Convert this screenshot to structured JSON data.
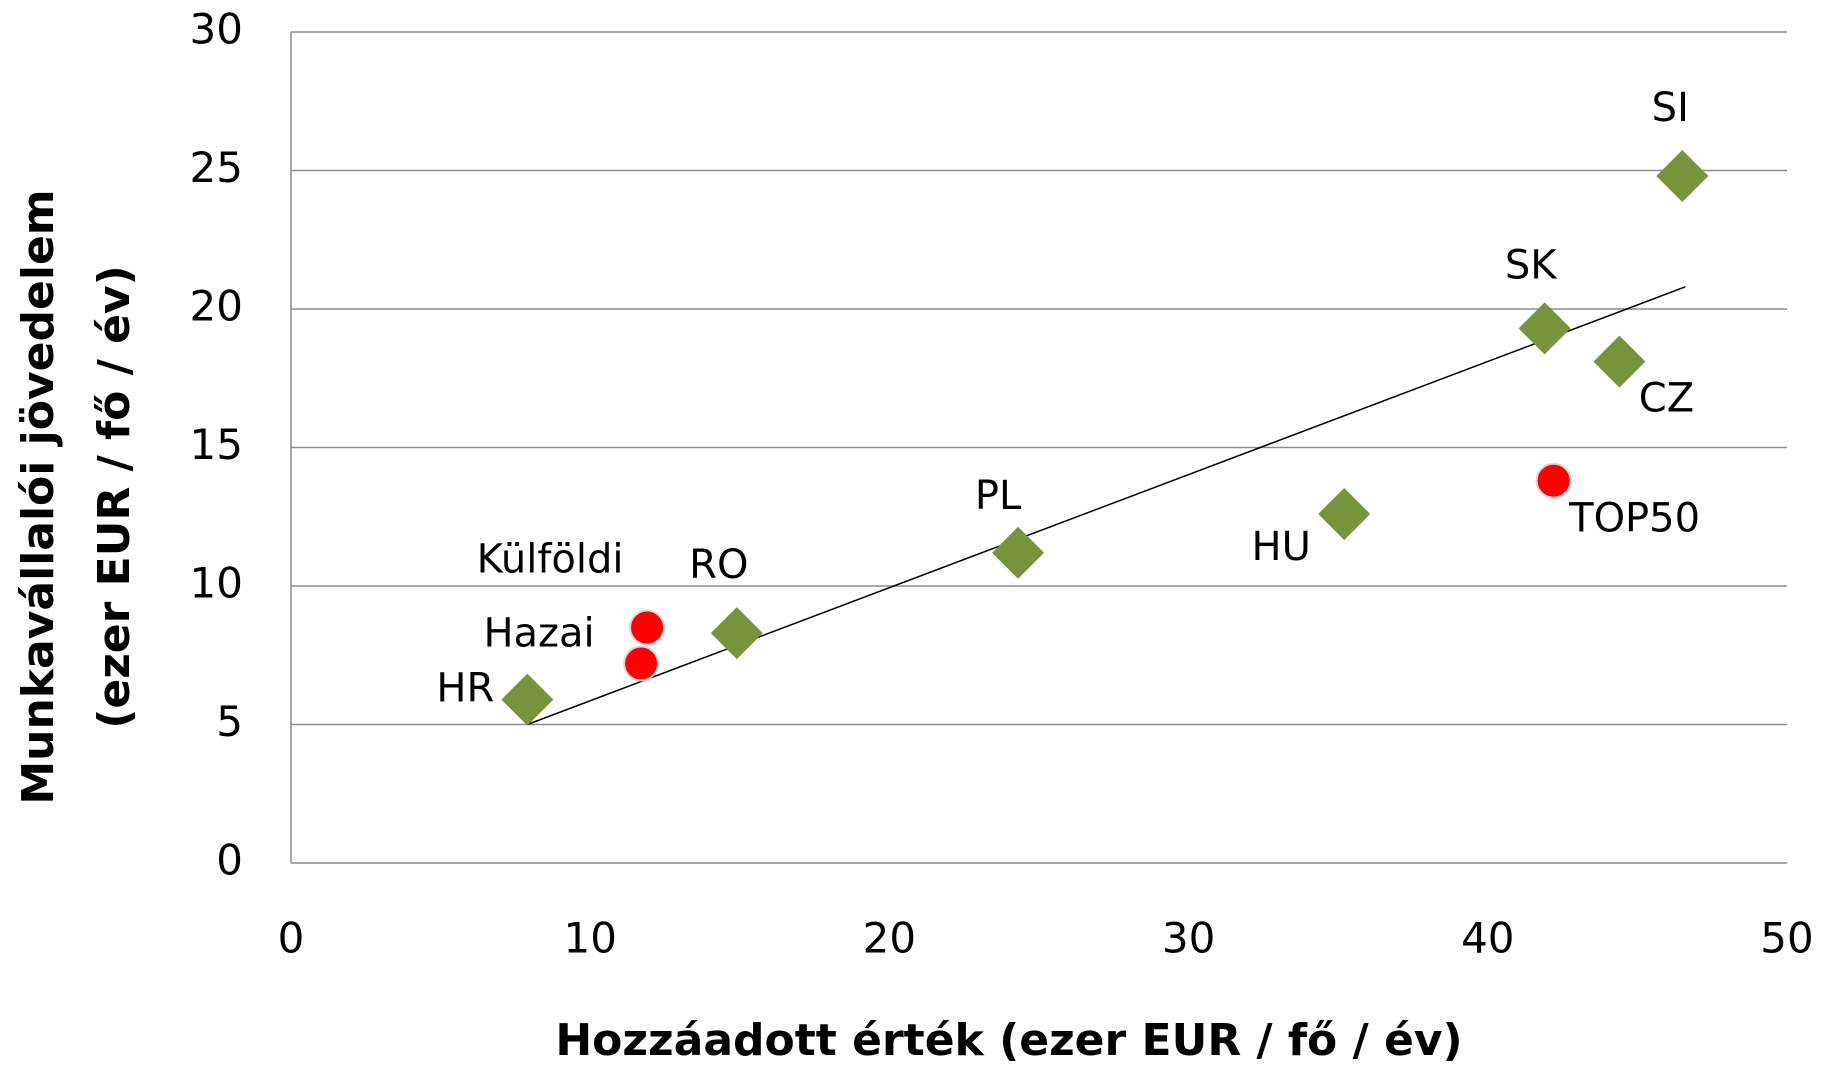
{
  "chart_data": {
    "type": "scatter",
    "x_label": "Hozzáadott érték (ezer EUR / fő / év)",
    "y_label": [
      "Munkavállalói jövedelem",
      "(ezer EUR / fő / év)"
    ],
    "xlim": [
      0,
      50
    ],
    "xticks": [
      0,
      10,
      20,
      30,
      40,
      50
    ],
    "ylim": [
      0,
      30
    ],
    "yticks": [
      0,
      5,
      10,
      15,
      20,
      25,
      30
    ],
    "grid": true,
    "series": [
      {
        "color": "#77933c",
        "marker": "diamond",
        "x": [
          7.9,
          14.9,
          24.3,
          35.2,
          41.9,
          44.4,
          46.5
        ],
        "y": [
          5.9,
          8.3,
          11.2,
          12.6,
          19.3,
          18.1,
          24.8
        ],
        "labels": [
          "HR",
          "RO",
          "PL",
          "HU",
          "SK",
          "CZ",
          "SI"
        ]
      },
      {
        "color": "#ff0000",
        "marker": "circle",
        "x": [
          11.9,
          11.7,
          42.2
        ],
        "y": [
          8.5,
          7.2,
          13.8
        ],
        "labels": [
          "Külföldi",
          "Hazai",
          "TOP50"
        ]
      }
    ],
    "trendline": {
      "color": "#000000",
      "x": [
        7.9,
        46.6
      ],
      "y": [
        5.0,
        20.8
      ]
    }
  }
}
